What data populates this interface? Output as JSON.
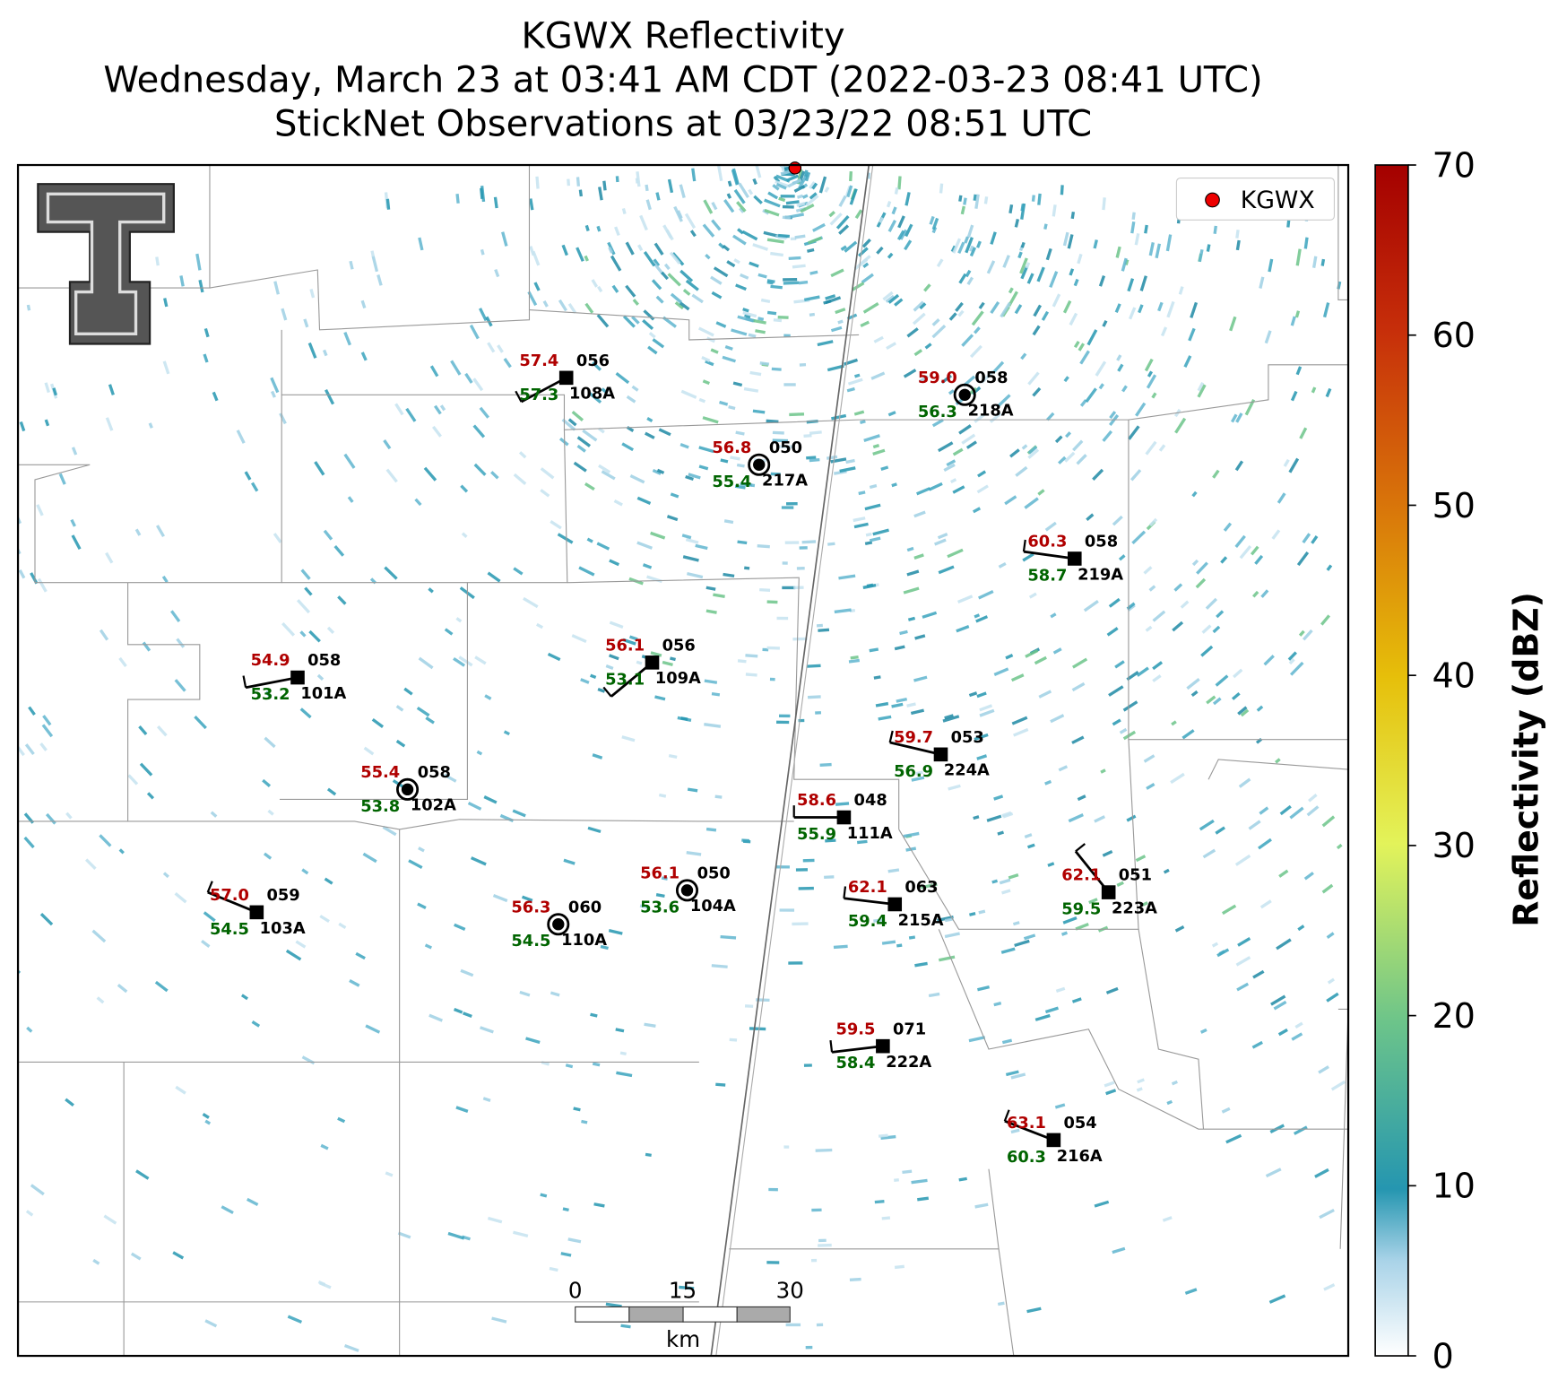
{
  "title": [
    "KGWX Reflectivity",
    "Wednesday, March 23 at 03:41 AM CDT (2022-03-23 08:41 UTC)",
    "StickNet Observations at 03/23/22 08:51 UTC"
  ],
  "legend": "KGWX",
  "colorbar": {
    "label": "Reflectivity (dBZ)",
    "lim": [
      0,
      70
    ],
    "ticks": [
      0,
      10,
      20,
      30,
      40,
      50,
      60,
      70
    ]
  },
  "scale_bar": {
    "ticks": [
      0,
      15,
      30
    ],
    "unit": "km"
  },
  "stations": [
    {
      "id": "108A",
      "temperature": "57.4",
      "dewpoint": "57.3",
      "pressure": "056"
    },
    {
      "id": "218A",
      "temperature": "59.0",
      "dewpoint": "56.3",
      "pressure": "058"
    },
    {
      "id": "217A",
      "temperature": "56.8",
      "dewpoint": "55.4",
      "pressure": "050"
    },
    {
      "id": "219A",
      "temperature": "60.3",
      "dewpoint": "58.7",
      "pressure": "058"
    },
    {
      "id": "101A",
      "temperature": "54.9",
      "dewpoint": "53.2",
      "pressure": "058"
    },
    {
      "id": "109A",
      "temperature": "56.1",
      "dewpoint": "53.1",
      "pressure": "056"
    },
    {
      "id": "102A",
      "temperature": "55.4",
      "dewpoint": "53.8",
      "pressure": "058"
    },
    {
      "id": "224A",
      "temperature": "59.7",
      "dewpoint": "56.9",
      "pressure": "053"
    },
    {
      "id": "111A",
      "temperature": "58.6",
      "dewpoint": "55.9",
      "pressure": "048"
    },
    {
      "id": "103A",
      "temperature": "57.0",
      "dewpoint": "54.5",
      "pressure": "059"
    },
    {
      "id": "110A",
      "temperature": "56.3",
      "dewpoint": "54.5",
      "pressure": "060"
    },
    {
      "id": "104A",
      "temperature": "56.1",
      "dewpoint": "53.6",
      "pressure": "050"
    },
    {
      "id": "215A",
      "temperature": "62.1",
      "dewpoint": "59.4",
      "pressure": "063"
    },
    {
      "id": "223A",
      "temperature": "62.1",
      "dewpoint": "59.5",
      "pressure": "051"
    },
    {
      "id": "222A",
      "temperature": "59.5",
      "dewpoint": "58.4",
      "pressure": "071"
    },
    {
      "id": "216A",
      "temperature": "63.1",
      "dewpoint": "60.3",
      "pressure": "054"
    }
  ]
}
